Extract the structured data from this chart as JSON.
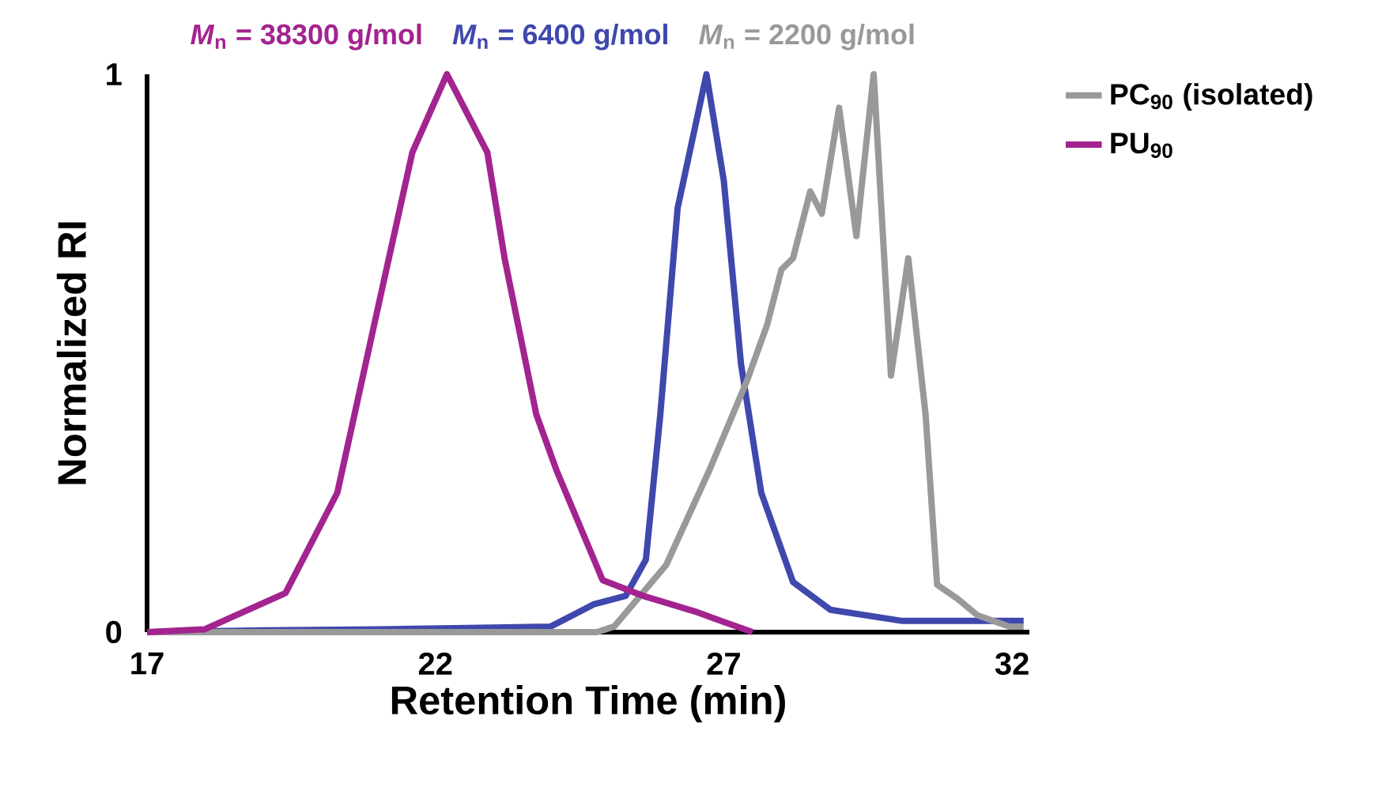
{
  "chart_data": {
    "type": "line",
    "xlabel": "Retention Time (min)",
    "ylabel": "Normalized RI",
    "annotations": [
      {
        "text": "*M*$_{n}$ = 38300 g/mol",
        "x": 22.2,
        "y": 1
      },
      {
        "text": "*M*$_{n}$ = 6400 g/mol",
        "x": 26.7,
        "y": 1
      },
      {
        "text": "*M*$_{n}$ = 2200 g/mol",
        "x": 29.6,
        "y": 1
      }
    ],
    "xlim": [
      17,
      32.3
    ],
    "ylim": [
      0,
      1.0
    ],
    "xticks": [
      17,
      22,
      27,
      32
    ],
    "yticks": [
      0,
      1
    ],
    "legend": "top right",
    "grid": false,
    "marker": "none",
    "line_style": "solid",
    "series": [
      {
        "color": "#3f48ac",
        "x": [
          17,
          19,
          21,
          23,
          24.0,
          24.75,
          25.3,
          25.65,
          25.9,
          26.2,
          26.7,
          27.0,
          27.3,
          27.65,
          28.2,
          28.85,
          30.1,
          32.2
        ],
        "values": [
          0,
          0.003,
          0.005,
          0.008,
          0.01,
          0.05,
          0.065,
          0.13,
          0.39,
          0.76,
          1.0,
          0.81,
          0.48,
          0.25,
          0.09,
          0.04,
          0.02,
          0.02
        ]
      },
      {
        "name": "PC$_{90}$ (isolated)",
        "color": "#999999",
        "x": [
          17,
          24.8,
          25.1,
          26.0,
          26.75,
          27.4,
          27.75,
          28.0,
          28.2,
          28.5,
          28.7,
          29.0,
          29.3,
          29.6,
          29.9,
          30.2,
          30.5,
          30.7,
          31.05,
          31.4,
          31.95,
          32.2
        ],
        "values": [
          0,
          0,
          0.01,
          0.12,
          0.29,
          0.45,
          0.55,
          0.65,
          0.67,
          0.79,
          0.75,
          0.94,
          0.71,
          1.0,
          0.46,
          0.67,
          0.39,
          0.085,
          0.06,
          0.03,
          0.01,
          0.01
        ]
      },
      {
        "name": "PU$_{90}$",
        "color": "#a3238f",
        "x": [
          17,
          18.0,
          19.4,
          20.3,
          21.0,
          21.6,
          22.2,
          22.9,
          23.2,
          23.75,
          24.1,
          24.9,
          25.6,
          26.5,
          26.95,
          27.5
        ],
        "values": [
          0,
          0.005,
          0.07,
          0.25,
          0.58,
          0.86,
          1.0,
          0.86,
          0.67,
          0.39,
          0.29,
          0.093,
          0.065,
          0.037,
          0.02,
          0
        ]
      }
    ]
  }
}
